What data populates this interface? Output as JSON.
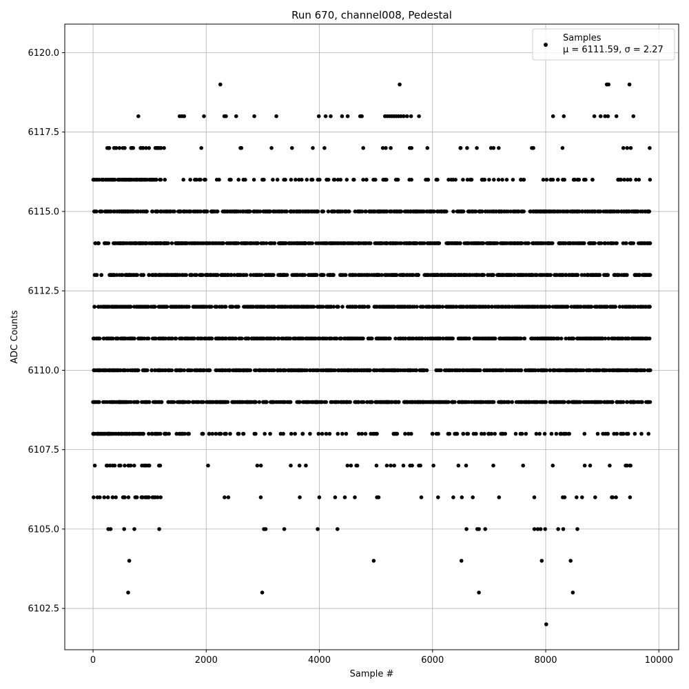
{
  "chart_data": {
    "type": "scatter",
    "title": "Run 670, channel008, Pedestal",
    "xlabel": "Sample #",
    "ylabel": "ADC Counts",
    "xlim": [
      -500,
      10350
    ],
    "ylim": [
      6101.2,
      6120.9
    ],
    "x_ticks": [
      0,
      2000,
      4000,
      6000,
      8000,
      10000
    ],
    "x_tick_labels": [
      "0",
      "2000",
      "4000",
      "6000",
      "8000",
      "10000"
    ],
    "y_ticks": [
      6102.5,
      6105.0,
      6107.5,
      6110.0,
      6112.5,
      6115.0,
      6117.5,
      6120.0
    ],
    "y_tick_labels": [
      "6102.5",
      "6105.0",
      "6107.5",
      "6110.0",
      "6112.5",
      "6115.0",
      "6117.5",
      "6120.0"
    ],
    "grid": true,
    "legend_position": "top-right",
    "marker_color": "#000000",
    "grid_color": "#b0b0b0",
    "series": [
      {
        "name": "Samples",
        "legend_stats": "μ = 6111.59, σ = 2.27",
        "sample_range": [
          0,
          9850
        ],
        "dense_levels": [
          6109,
          6110,
          6111,
          6112,
          6113,
          6114,
          6115
        ],
        "medium_levels": [
          6108,
          6116
        ],
        "sparse_levels": [
          6106,
          6107,
          6117
        ],
        "points": [
          [
            2250,
            6119
          ],
          [
            5420,
            6119
          ],
          [
            9080,
            6119
          ],
          [
            9110,
            6119
          ],
          [
            9480,
            6119
          ],
          [
            800,
            6118
          ],
          [
            1530,
            6118
          ],
          [
            1570,
            6118
          ],
          [
            1610,
            6118
          ],
          [
            1960,
            6118
          ],
          [
            2320,
            6118
          ],
          [
            2350,
            6118
          ],
          [
            2530,
            6118
          ],
          [
            2850,
            6118
          ],
          [
            3240,
            6118
          ],
          [
            3990,
            6118
          ],
          [
            4110,
            6118
          ],
          [
            4200,
            6118
          ],
          [
            4400,
            6118
          ],
          [
            4500,
            6118
          ],
          [
            4720,
            6118
          ],
          [
            4750,
            6118
          ],
          [
            5160,
            6118
          ],
          [
            5200,
            6118
          ],
          [
            5240,
            6118
          ],
          [
            5280,
            6118
          ],
          [
            5320,
            6118
          ],
          [
            5360,
            6118
          ],
          [
            5400,
            6118
          ],
          [
            5440,
            6118
          ],
          [
            5490,
            6118
          ],
          [
            5550,
            6118
          ],
          [
            5620,
            6118
          ],
          [
            5760,
            6118
          ],
          [
            8130,
            6118
          ],
          [
            8320,
            6118
          ],
          [
            8860,
            6118
          ],
          [
            8970,
            6118
          ],
          [
            9050,
            6118
          ],
          [
            9100,
            6118
          ],
          [
            9250,
            6118
          ],
          [
            9550,
            6118
          ],
          [
            640,
            6104
          ],
          [
            4960,
            6104
          ],
          [
            6510,
            6104
          ],
          [
            7930,
            6104
          ],
          [
            8440,
            6104
          ],
          [
            620,
            6103
          ],
          [
            2990,
            6103
          ],
          [
            6820,
            6103
          ],
          [
            8480,
            6103
          ],
          [
            8010,
            6102
          ],
          [
            270,
            6105
          ],
          [
            310,
            6105
          ],
          [
            550,
            6105
          ],
          [
            730,
            6105
          ],
          [
            1170,
            6105
          ],
          [
            3020,
            6105
          ],
          [
            3050,
            6105
          ],
          [
            3380,
            6105
          ],
          [
            3970,
            6105
          ],
          [
            4320,
            6105
          ],
          [
            6600,
            6105
          ],
          [
            6790,
            6105
          ],
          [
            6820,
            6105
          ],
          [
            6930,
            6105
          ],
          [
            7800,
            6105
          ],
          [
            7860,
            6105
          ],
          [
            7910,
            6105
          ],
          [
            7990,
            6105
          ],
          [
            8220,
            6105
          ],
          [
            8310,
            6105
          ],
          [
            8560,
            6105
          ]
        ]
      }
    ]
  }
}
